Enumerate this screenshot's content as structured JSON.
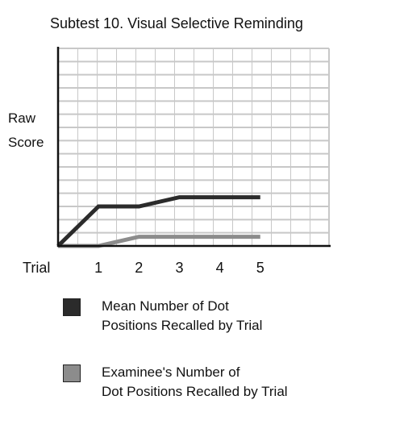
{
  "chart_data": {
    "type": "line",
    "title": "Subtest 10. Visual Selective Reminding",
    "y_label": "Raw\nScore",
    "x_label": "Trial",
    "xlim": [
      0,
      6.7
    ],
    "xticks": [
      1,
      2,
      3,
      4,
      5
    ],
    "ylim": [
      0,
      15
    ],
    "yticks": [
      0,
      1,
      2,
      3,
      4,
      5,
      6,
      7,
      8,
      9,
      10,
      11,
      12,
      13,
      14,
      15
    ],
    "grid": true,
    "series": [
      {
        "name": "Mean Number of Dot\nPositions Recalled by Trial",
        "color": "#2b2b2b",
        "x": [
          0,
          1,
          2,
          3,
          5
        ],
        "values": [
          0,
          3,
          3,
          3.7,
          3.7
        ]
      },
      {
        "name": "Examinee's Number of\nDot Positions Recalled by Trial",
        "color": "#8c8c8c",
        "x": [
          0,
          1,
          2,
          5
        ],
        "values": [
          0,
          0,
          0.7,
          0.7
        ]
      }
    ]
  }
}
